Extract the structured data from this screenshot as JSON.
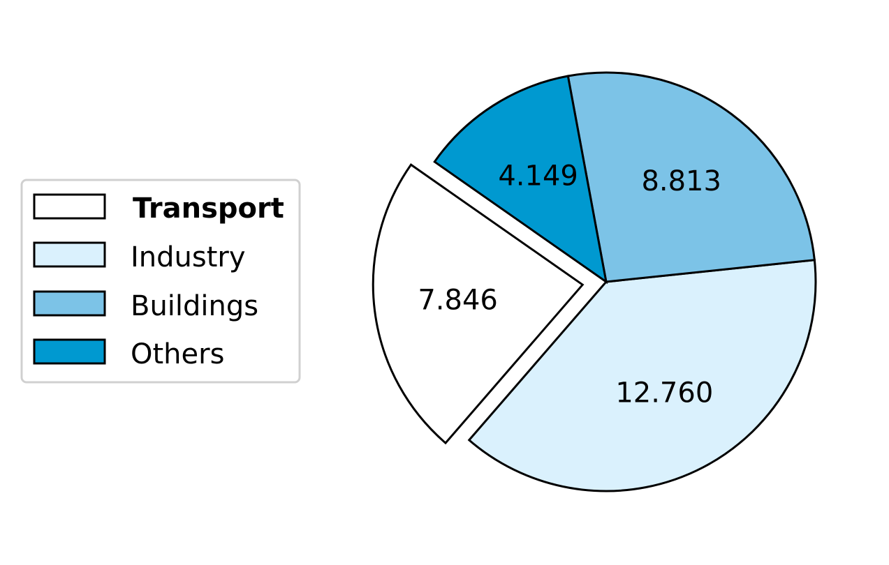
{
  "chart_data": {
    "type": "pie",
    "title": "",
    "slices": [
      {
        "label": "Transport",
        "value": 7.846,
        "display": "7.846",
        "color": "#ffffff",
        "exploded": true,
        "bold": true
      },
      {
        "label": "Industry",
        "value": 12.76,
        "display": "12.760",
        "color": "#daf1fd",
        "exploded": false,
        "bold": false
      },
      {
        "label": "Buildings",
        "value": 8.813,
        "display": "8.813",
        "color": "#7cc3e7",
        "exploded": false,
        "bold": false
      },
      {
        "label": "Others",
        "value": 4.149,
        "display": "4.149",
        "color": "#0099d0",
        "exploded": false,
        "bold": false
      }
    ],
    "legend_placement": "left",
    "edge_color": "#000000"
  }
}
